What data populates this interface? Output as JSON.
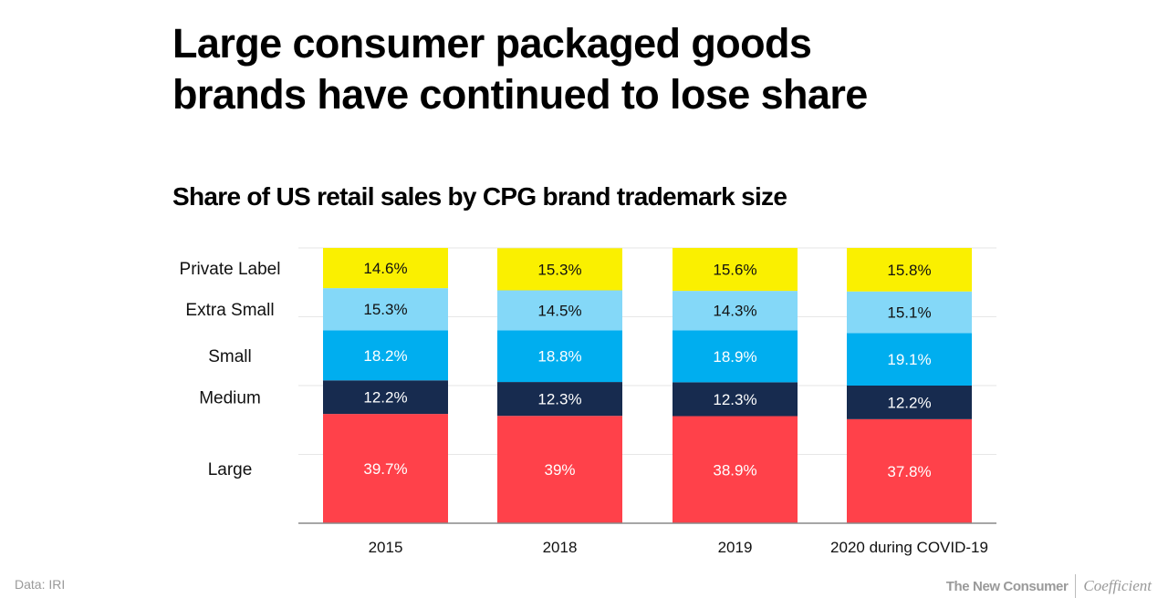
{
  "header": {
    "title_line1": "Large consumer packaged goods",
    "title_line2": "brands have continued to lose share"
  },
  "footer": {
    "source": "Data: IRI",
    "logo_primary": "The New Consumer",
    "logo_secondary": "Coefficient"
  },
  "chart_data": {
    "type": "bar",
    "stacked": true,
    "title": "Share of US retail sales by CPG brand trademark size",
    "categories": [
      "2015",
      "2018",
      "2019",
      "2020 during COVID-19"
    ],
    "ylim": [
      0,
      100
    ],
    "grid": true,
    "legend": "left (row labels beside first bar)",
    "series": [
      {
        "name": "Large",
        "color": "#FF414A",
        "label_color": "#FFFFFF",
        "values": [
          39.7,
          39,
          38.9,
          37.8
        ],
        "labels": [
          "39.7%",
          "39%",
          "38.9%",
          "37.8%"
        ]
      },
      {
        "name": "Medium",
        "color": "#172B4F",
        "label_color": "#FFFFFF",
        "values": [
          12.2,
          12.3,
          12.3,
          12.2
        ],
        "labels": [
          "12.2%",
          "12.3%",
          "12.3%",
          "12.2%"
        ]
      },
      {
        "name": "Small",
        "color": "#00AEEF",
        "label_color": "#FFFFFF",
        "values": [
          18.2,
          18.8,
          18.9,
          19.1
        ],
        "labels": [
          "18.2%",
          "18.8%",
          "18.9%",
          "19.1%"
        ]
      },
      {
        "name": "Extra Small",
        "color": "#84D8F8",
        "label_color": "#111111",
        "values": [
          15.3,
          14.5,
          14.3,
          15.1
        ],
        "labels": [
          "15.3%",
          "14.5%",
          "14.3%",
          "15.1%"
        ]
      },
      {
        "name": "Private Label",
        "color": "#FAF000",
        "label_color": "#111111",
        "values": [
          14.6,
          15.3,
          15.6,
          15.8
        ],
        "labels": [
          "14.6%",
          "15.3%",
          "15.6%",
          "15.8%"
        ]
      }
    ]
  }
}
